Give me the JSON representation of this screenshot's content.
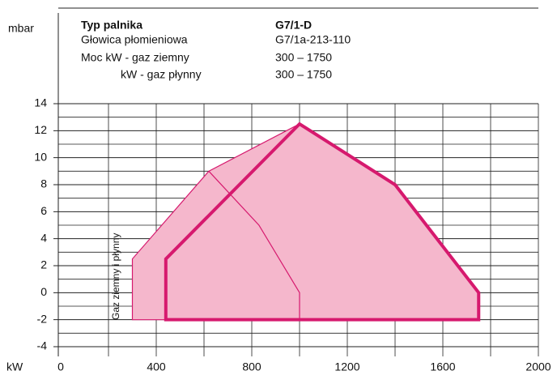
{
  "chart_data": {
    "type": "area",
    "y_unit": "mbar",
    "x_unit": "kW",
    "header": [
      [
        "Typ palnika",
        "G7/1-D"
      ],
      [
        "Głowica płomieniowa",
        "G7/1a-213-110"
      ],
      [
        "Moc kW - gaz ziemny",
        "300 – 1750"
      ],
      [
        "kW - gaz płynny",
        "300 – 1750"
      ]
    ],
    "annotation": "Gaz ziemny i płynny",
    "xlim": [
      0,
      2000
    ],
    "xticks": [
      0,
      400,
      800,
      1200,
      1600,
      2000
    ],
    "x_minor_ticks": [
      200,
      600,
      1000,
      1400,
      1800
    ],
    "ylim": [
      -4,
      14
    ],
    "yticks": [
      -4,
      -2,
      0,
      2,
      4,
      6,
      8,
      10,
      12,
      14
    ],
    "y_minor_ticks": [
      -3,
      -1,
      1,
      3,
      5,
      7,
      9,
      11,
      13
    ],
    "grid": true,
    "fill": "#f5b7cc",
    "series": [
      {
        "x": [
          300,
          300,
          620,
          1000,
          1400,
          1750,
          1750
        ],
        "values": [
          -2,
          2.5,
          9,
          12.5,
          8,
          0,
          -2
        ],
        "color": "#d6196e",
        "width": 1.2,
        "closed": true,
        "filled": true
      },
      {
        "x": [
          440,
          440,
          1000,
          1400,
          1750,
          1750
        ],
        "values": [
          -2,
          2.5,
          12.5,
          8,
          0,
          -2
        ],
        "color": "#d6196e",
        "width": 4,
        "closed": true,
        "filled": false
      },
      {
        "x": [
          620,
          830,
          1000,
          1000
        ],
        "values": [
          9,
          5,
          0,
          -2
        ],
        "color": "#d6196e",
        "width": 1.2,
        "closed": false,
        "filled": false
      }
    ]
  }
}
